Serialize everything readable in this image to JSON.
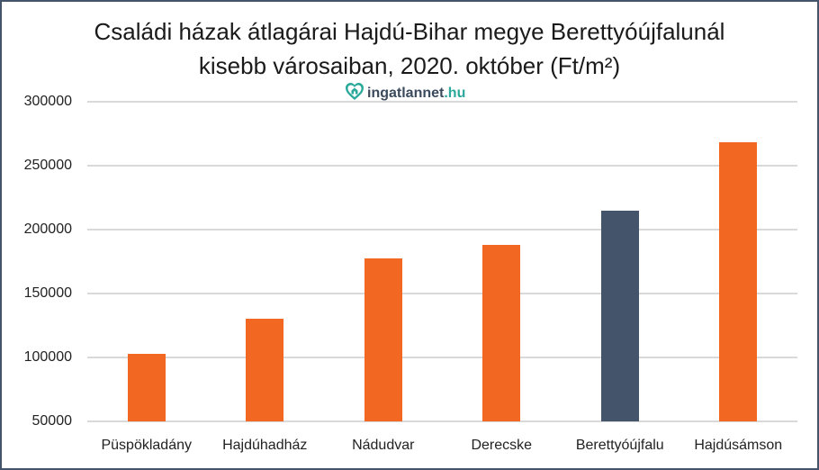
{
  "chart_data": {
    "type": "bar",
    "title": "Családi házak átlagárai Hajdú-Bihar megye Berettyóújfalunál kisebb városaiban, 2020. október (Ft/m²)",
    "title_lines": [
      "Családi házak átlagárai Hajdú-Bihar megye Berettyóújfalunál",
      "kisebb városaiban, 2020. október (Ft/m²)"
    ],
    "watermark": {
      "name": "ingatlannet",
      "tld": ".hu"
    },
    "categories": [
      "Püspökladány",
      "Hajdúhadház",
      "Nádudvar",
      "Derecske",
      "Berettyóújfalu",
      "Hajdúsámson"
    ],
    "values": [
      102500,
      130000,
      177500,
      188000,
      215000,
      268500
    ],
    "colors": [
      "#f26722",
      "#f26722",
      "#f26722",
      "#f26722",
      "#44546a",
      "#f26722"
    ],
    "highlight": "Berettyóújfalu",
    "xlabel": "",
    "ylabel": "",
    "ylim": [
      50000,
      300000
    ],
    "yticks": [
      "300000",
      "250000",
      "200000",
      "150000",
      "100000",
      "50000"
    ],
    "grid": true,
    "legend": null
  }
}
